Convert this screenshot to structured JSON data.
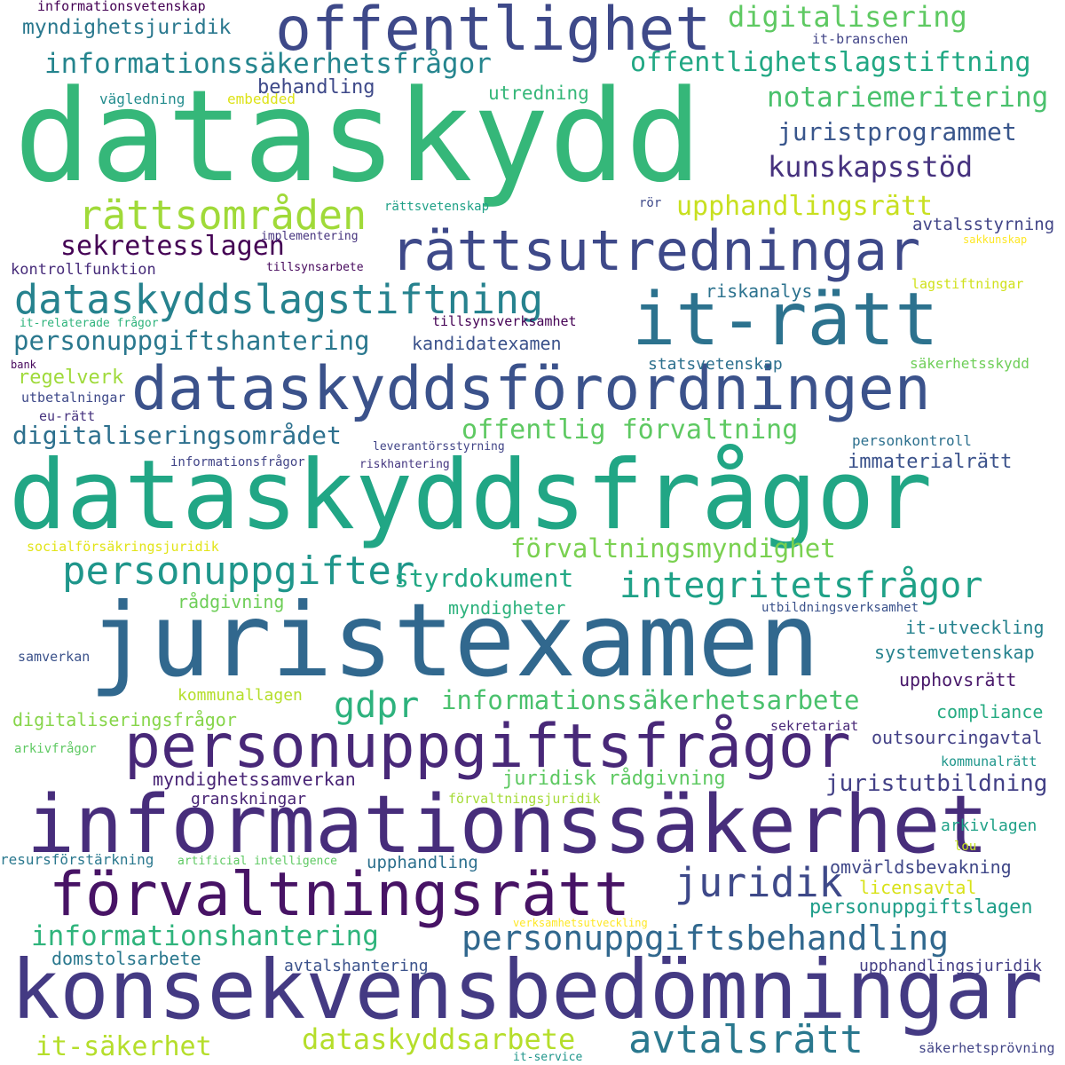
{
  "words": [
    {
      "text": "dataskydd",
      "color": "#35b779"
    },
    {
      "text": "dataskyddsfrågor",
      "color": "#21a685"
    },
    {
      "text": "juristexamen",
      "color": "#31688e"
    },
    {
      "text": "konsekvensbedömningar",
      "color": "#443a83"
    },
    {
      "text": "informationssäkerhet",
      "color": "#472d7b"
    },
    {
      "text": "personuppgiftsfrågor",
      "color": "#482878"
    },
    {
      "text": "förvaltningsrätt",
      "color": "#471365"
    },
    {
      "text": "offentlighet",
      "color": "#3e4989"
    },
    {
      "text": "it-rätt",
      "color": "#2c728e"
    },
    {
      "text": "dataskyddsförordningen",
      "color": "#3b528b"
    },
    {
      "text": "rättsutredningar",
      "color": "#3e4989"
    },
    {
      "text": "dataskyddslagstiftning",
      "color": "#26828e"
    },
    {
      "text": "rättsområden",
      "color": "#a0da39"
    },
    {
      "text": "digitalisering",
      "color": "#5ec962"
    },
    {
      "text": "informationssäkerhetsfrågor",
      "color": "#25858e"
    },
    {
      "text": "offentlighetslagstiftning",
      "color": "#22a884"
    },
    {
      "text": "notariemeritering",
      "color": "#4ac16d"
    },
    {
      "text": "juristprogrammet",
      "color": "#39568c"
    },
    {
      "text": "kunskapsstöd",
      "color": "#46327e"
    },
    {
      "text": "upphandlingsrätt",
      "color": "#c8e020"
    },
    {
      "text": "sekretesslagen",
      "color": "#440154"
    },
    {
      "text": "personuppgiftshantering",
      "color": "#2a788e"
    },
    {
      "text": "digitaliseringsområdet",
      "color": "#2d708e"
    },
    {
      "text": "offentlig förvaltning",
      "color": "#5ec962"
    },
    {
      "text": "personuppgifter",
      "color": "#1f968b"
    },
    {
      "text": "förvaltningsmyndighet",
      "color": "#7ad151"
    },
    {
      "text": "integritetsfrågor",
      "color": "#1fa187"
    },
    {
      "text": "styrdokument",
      "color": "#22a884"
    },
    {
      "text": "gdpr",
      "color": "#2db27d"
    },
    {
      "text": "informationssäkerhetsarbete",
      "color": "#4ac16d"
    },
    {
      "text": "juridik",
      "color": "#3e4989"
    },
    {
      "text": "informationshantering",
      "color": "#2fb47c"
    },
    {
      "text": "personuppgiftsbehandling",
      "color": "#31688e"
    },
    {
      "text": "dataskyddsarbete",
      "color": "#b5de2b"
    },
    {
      "text": "avtalsrätt",
      "color": "#2a788e"
    },
    {
      "text": "it-säkerhet",
      "color": "#b5de2b"
    },
    {
      "text": "myndighetsjuridik",
      "color": "#2a788e"
    },
    {
      "text": "behandling",
      "color": "#3e4989"
    },
    {
      "text": "utredning",
      "color": "#35b779"
    },
    {
      "text": "juristutbildning",
      "color": "#424086"
    },
    {
      "text": "immaterialrätt",
      "color": "#3b528b"
    },
    {
      "text": "personuppgiftslagen",
      "color": "#1f9e89"
    },
    {
      "text": "avtalsstyrning",
      "color": "#414487"
    },
    {
      "text": "riskanalys",
      "color": "#2c728e"
    },
    {
      "text": "kandidatexamen",
      "color": "#3b528b"
    },
    {
      "text": "statsvetenskap",
      "color": "#2d708e"
    },
    {
      "text": "regelverk",
      "color": "#9fda3a"
    },
    {
      "text": "rådgivning",
      "color": "#6ece58"
    },
    {
      "text": "myndigheter",
      "color": "#2db27d"
    },
    {
      "text": "it-utveckling",
      "color": "#26828e"
    },
    {
      "text": "systemvetenskap",
      "color": "#26828e"
    },
    {
      "text": "upphovsrätt",
      "color": "#48186a"
    },
    {
      "text": "compliance",
      "color": "#25ab82"
    },
    {
      "text": "outsourcingavtal",
      "color": "#424086"
    },
    {
      "text": "juridisk rådgivning",
      "color": "#5ec962"
    },
    {
      "text": "myndighetssamverkan",
      "color": "#482475"
    },
    {
      "text": "granskningar",
      "color": "#482475"
    },
    {
      "text": "digitaliseringsfrågor",
      "color": "#86d549"
    },
    {
      "text": "kommunallagen",
      "color": "#b5de2b"
    },
    {
      "text": "upphandling",
      "color": "#2d708e"
    },
    {
      "text": "omvärldsbevakning",
      "color": "#3f4788"
    },
    {
      "text": "licensavtal",
      "color": "#d8e219"
    },
    {
      "text": "avtalshantering",
      "color": "#3b528b"
    },
    {
      "text": "domstolsarbete",
      "color": "#2a788e"
    },
    {
      "text": "upphandlingsjuridik",
      "color": "#433e85"
    },
    {
      "text": "arkivlagen",
      "color": "#1fa187"
    },
    {
      "text": "kommunalrätt",
      "color": "#1f968b"
    },
    {
      "text": "personkontroll",
      "color": "#2d708e"
    },
    {
      "text": "säkerhetsskydd",
      "color": "#6ece58"
    },
    {
      "text": "informationsvetenskap",
      "color": "#440154"
    },
    {
      "text": "vägledning",
      "color": "#228c8d"
    },
    {
      "text": "embedded",
      "color": "#dde318"
    },
    {
      "text": "it-branschen",
      "color": "#414487"
    },
    {
      "text": "rättsvetenskap",
      "color": "#1fa187"
    },
    {
      "text": "rör",
      "color": "#3e4989"
    },
    {
      "text": "implementering",
      "color": "#46337e"
    },
    {
      "text": "tillsynsarbete",
      "color": "#46085c"
    },
    {
      "text": "kontrollfunktion",
      "color": "#472c7a"
    },
    {
      "text": "sakkunskap",
      "color": "#fde725"
    },
    {
      "text": "lagstiftningar",
      "color": "#d0e11c"
    },
    {
      "text": "it-relaterade frågor",
      "color": "#2eb37c"
    },
    {
      "text": "tillsynsverksamhet",
      "color": "#440154"
    },
    {
      "text": "bank",
      "color": "#46085c"
    },
    {
      "text": "utbetalningar",
      "color": "#3e4989"
    },
    {
      "text": "eu-rätt",
      "color": "#46327e"
    },
    {
      "text": "leverantörsstyrning",
      "color": "#414487"
    },
    {
      "text": "informationsfrågor",
      "color": "#414487"
    },
    {
      "text": "riskhantering",
      "color": "#453781"
    },
    {
      "text": "socialförsäkringsjuridik",
      "color": "#e2e418"
    },
    {
      "text": "utbildningsverksamhet",
      "color": "#3b528b"
    },
    {
      "text": "samverkan",
      "color": "#3b528b"
    },
    {
      "text": "sekretariat",
      "color": "#482878"
    },
    {
      "text": "arkivfrågor",
      "color": "#5ec962"
    },
    {
      "text": "förvaltningsjuridik",
      "color": "#a5db36"
    },
    {
      "text": "resursförstärkning",
      "color": "#2a788e"
    },
    {
      "text": "artificial intelligence",
      "color": "#5ec962"
    },
    {
      "text": "lou",
      "color": "#c5e021"
    },
    {
      "text": "verksamhetsutveckling",
      "color": "#fde725"
    },
    {
      "text": "säkerhetsprövning",
      "color": "#414487"
    },
    {
      "text": "it-service",
      "color": "#1f968b"
    }
  ]
}
